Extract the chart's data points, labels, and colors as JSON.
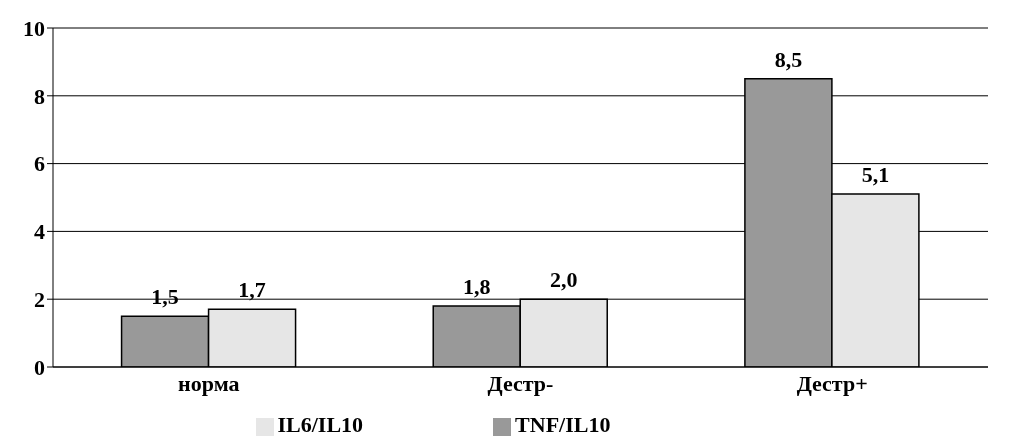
{
  "chart_data": {
    "type": "bar",
    "categories": [
      "норма",
      "Дестр-",
      "Дестр+"
    ],
    "series": [
      {
        "name": "TNF/IL10",
        "color": "#999999",
        "values": [
          1.5,
          1.8,
          8.5
        ],
        "value_labels": [
          "1,5",
          "1,8",
          "8,5"
        ]
      },
      {
        "name": "IL6/IL10",
        "color": "#e6e6e6",
        "values": [
          1.7,
          2.0,
          5.1
        ],
        "value_labels": [
          "1,7",
          "2,0",
          "5,1"
        ]
      }
    ],
    "ylim": [
      0,
      10
    ],
    "yticks": [
      0,
      2,
      4,
      6,
      8,
      10
    ],
    "grid": "y",
    "legend": "bottom"
  }
}
